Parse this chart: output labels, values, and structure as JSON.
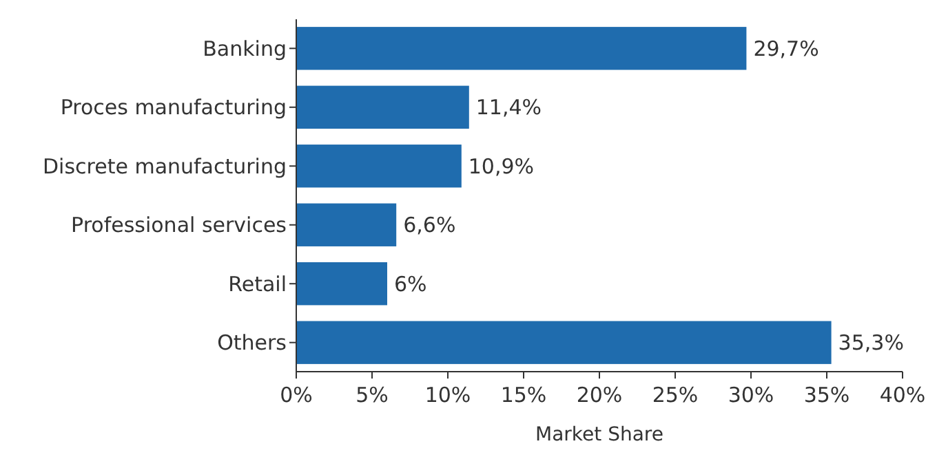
{
  "chart_data": {
    "type": "bar",
    "orientation": "horizontal",
    "xlabel": "Market Share",
    "categories": [
      "Banking",
      "Proces manufacturing",
      "Discrete manufacturing",
      "Professional services",
      "Retail",
      "Others"
    ],
    "values": [
      29.7,
      11.4,
      10.9,
      6.6,
      6,
      35.3
    ],
    "value_labels": [
      "29,7%",
      "11,4%",
      "10,9%",
      "6,6%",
      "6%",
      "35,3%"
    ],
    "color": "#1f6cae",
    "xlim": [
      0,
      40
    ],
    "xticks": [
      {
        "value": 0,
        "label": "0%"
      },
      {
        "value": 5,
        "label": "5%"
      },
      {
        "value": 10,
        "label": "10%"
      },
      {
        "value": 15,
        "label": "15%"
      },
      {
        "value": 20,
        "label": "20%"
      },
      {
        "value": 25,
        "label": "25%"
      },
      {
        "value": 30,
        "label": "30%"
      },
      {
        "value": 35,
        "label": "35%"
      },
      {
        "value": 40,
        "label": "40%"
      }
    ],
    "grid": false
  }
}
